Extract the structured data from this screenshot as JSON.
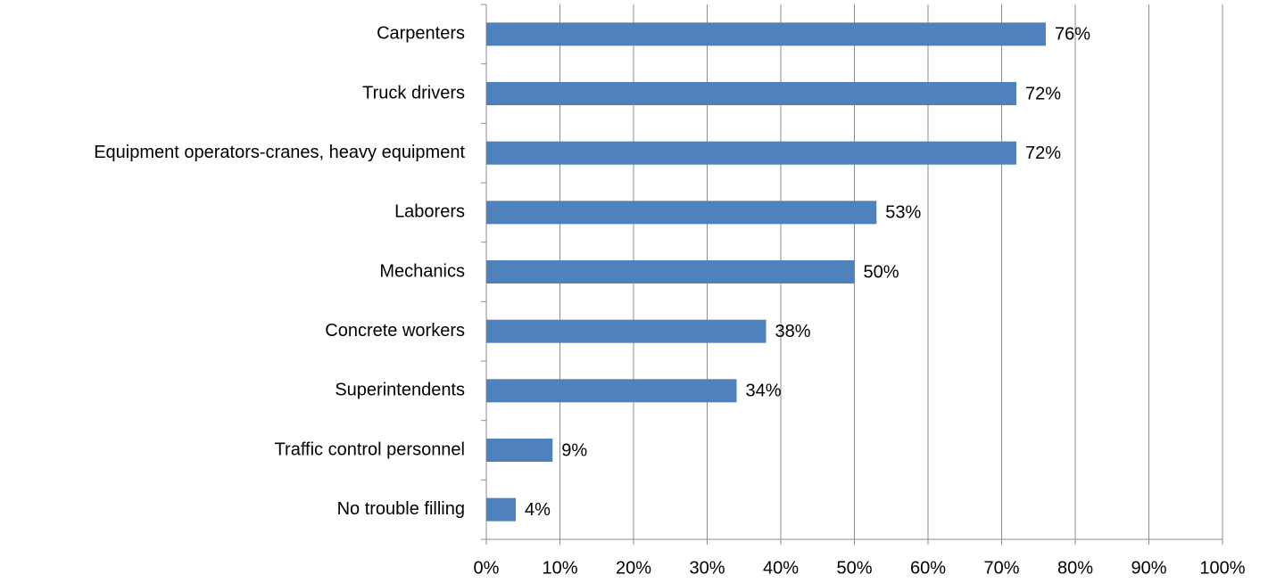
{
  "chart_data": {
    "type": "bar",
    "orientation": "horizontal",
    "categories": [
      "Carpenters",
      "Truck drivers",
      "Equipment operators-cranes, heavy equipment",
      "Laborers",
      "Mechanics",
      "Concrete workers",
      "Superintendents",
      "Traffic control personnel",
      "No trouble filling"
    ],
    "values": [
      76,
      72,
      72,
      53,
      50,
      38,
      34,
      9,
      4
    ],
    "value_labels": [
      "76%",
      "72%",
      "72%",
      "53%",
      "50%",
      "38%",
      "34%",
      "9%",
      "4%"
    ],
    "color": "#4f81bd",
    "xlim": [
      0,
      100
    ],
    "xticks": [
      {
        "value": 0,
        "label": "0%"
      },
      {
        "value": 10,
        "label": "10%"
      },
      {
        "value": 20,
        "label": "20%"
      },
      {
        "value": 30,
        "label": "30%"
      },
      {
        "value": 40,
        "label": "40%"
      },
      {
        "value": 50,
        "label": "50%"
      },
      {
        "value": 60,
        "label": "60%"
      },
      {
        "value": 70,
        "label": "70%"
      },
      {
        "value": 80,
        "label": "80%"
      },
      {
        "value": 90,
        "label": "90%"
      },
      {
        "value": 100,
        "label": "100%"
      }
    ],
    "grid": true
  }
}
